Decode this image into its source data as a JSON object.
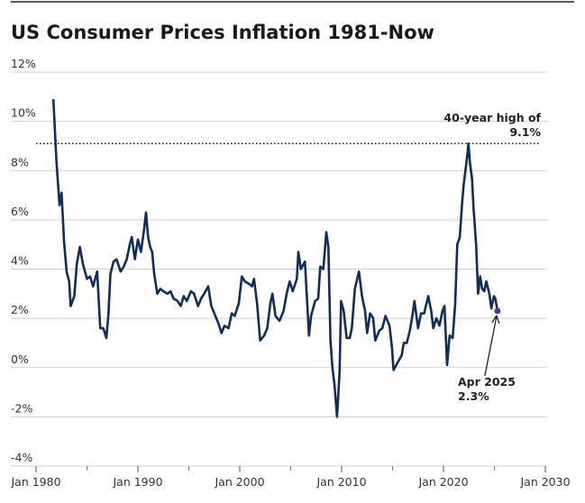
{
  "chart_data": {
    "type": "line",
    "title": "US Consumer Prices Inflation 1981-Now",
    "color": "#0e2f5c",
    "marker_color": "#4a3d8f",
    "grid": true,
    "x": [
      1981.7,
      1982.0,
      1982.3,
      1982.5,
      1982.75,
      1983.0,
      1983.25,
      1983.4,
      1983.75,
      1984.0,
      1984.3,
      1984.6,
      1985.0,
      1985.3,
      1985.6,
      1986.0,
      1986.3,
      1986.6,
      1986.9,
      1987.1,
      1987.3,
      1987.6,
      1987.9,
      1988.3,
      1988.6,
      1988.9,
      1989.2,
      1989.4,
      1989.7,
      1990.0,
      1990.3,
      1990.6,
      1990.8,
      1991.0,
      1991.2,
      1991.4,
      1991.6,
      1991.9,
      1992.2,
      1992.5,
      1992.9,
      1993.2,
      1993.5,
      1993.9,
      1994.2,
      1994.5,
      1994.8,
      1995.2,
      1995.5,
      1995.9,
      1996.2,
      1996.5,
      1996.9,
      1997.2,
      1997.5,
      1997.9,
      1998.2,
      1998.5,
      1998.9,
      1999.2,
      1999.5,
      1999.9,
      2000.2,
      2000.5,
      2000.9,
      2001.2,
      2001.4,
      2001.7,
      2002.0,
      2002.4,
      2002.7,
      2003.0,
      2003.2,
      2003.5,
      2003.9,
      2004.3,
      2004.6,
      2004.9,
      2005.2,
      2005.6,
      2005.75,
      2006.0,
      2006.4,
      2006.8,
      2007.0,
      2007.4,
      2007.7,
      2007.9,
      2008.2,
      2008.5,
      2008.7,
      2008.9,
      2009.1,
      2009.3,
      2009.55,
      2009.8,
      2009.95,
      2010.2,
      2010.5,
      2010.8,
      2011.0,
      2011.3,
      2011.7,
      2012.0,
      2012.3,
      2012.5,
      2012.8,
      2013.1,
      2013.3,
      2013.7,
      2014.0,
      2014.3,
      2014.7,
      2014.95,
      2015.1,
      2015.5,
      2015.9,
      2016.1,
      2016.4,
      2016.7,
      2016.95,
      2017.15,
      2017.5,
      2017.8,
      2018.1,
      2018.5,
      2018.8,
      2019.0,
      2019.3,
      2019.6,
      2019.9,
      2020.1,
      2020.35,
      2020.6,
      2020.9,
      2021.15,
      2021.35,
      2021.6,
      2021.85,
      2022.0,
      2022.25,
      2022.45,
      2022.6,
      2022.8,
      2022.95,
      2023.2,
      2023.4,
      2023.6,
      2023.8,
      2024.0,
      2024.2,
      2024.5,
      2024.7,
      2024.95,
      2025.1,
      2025.3
    ],
    "values": [
      10.9,
      8.4,
      6.6,
      7.1,
      5.1,
      3.9,
      3.5,
      2.5,
      2.9,
      4.2,
      4.9,
      4.2,
      3.6,
      3.7,
      3.3,
      3.9,
      1.6,
      1.6,
      1.2,
      2.1,
      3.8,
      4.3,
      4.4,
      3.9,
      4.1,
      4.4,
      5.0,
      5.3,
      4.4,
      5.2,
      4.7,
      5.6,
      6.3,
      5.3,
      4.9,
      4.7,
      3.8,
      3.0,
      3.2,
      3.1,
      3.0,
      3.1,
      2.8,
      2.7,
      2.5,
      2.9,
      2.7,
      3.1,
      3.0,
      2.5,
      2.8,
      3.0,
      3.3,
      2.5,
      2.2,
      1.8,
      1.4,
      1.7,
      1.6,
      2.2,
      2.1,
      2.6,
      3.7,
      3.5,
      3.4,
      3.3,
      3.6,
      2.6,
      1.1,
      1.3,
      1.6,
      2.6,
      3.0,
      2.1,
      1.9,
      2.3,
      3.0,
      3.5,
      3.1,
      3.6,
      4.7,
      4.0,
      4.3,
      1.3,
      2.1,
      2.7,
      2.8,
      4.1,
      4.0,
      5.5,
      4.9,
      1.1,
      0.0,
      -0.7,
      -2.0,
      -0.2,
      2.7,
      2.3,
      1.2,
      1.2,
      1.6,
      3.2,
      3.9,
      2.9,
      2.3,
      1.4,
      2.2,
      2.0,
      1.1,
      1.5,
      1.6,
      2.1,
      1.7,
      0.8,
      -0.1,
      0.2,
      0.5,
      1.0,
      1.0,
      1.5,
      2.1,
      2.7,
      1.6,
      2.2,
      2.2,
      2.9,
      2.3,
      1.6,
      2.0,
      1.7,
      2.3,
      2.5,
      0.1,
      1.3,
      1.2,
      2.6,
      5.0,
      5.3,
      6.8,
      7.5,
      8.3,
      9.1,
      8.3,
      7.7,
      6.5,
      5.0,
      3.0,
      3.7,
      3.2,
      3.1,
      3.5,
      3.0,
      2.4,
      2.9,
      2.8,
      2.3
    ],
    "xlim": [
      1980,
      2030
    ],
    "xticks": [
      {
        "value": 1980,
        "label": "Jan 1980"
      },
      {
        "value": 1990,
        "label": "Jan 1990"
      },
      {
        "value": 2000,
        "label": "Jan 2000"
      },
      {
        "value": 2010,
        "label": "Jan 2010"
      },
      {
        "value": 2020,
        "label": "Jan 2020"
      },
      {
        "value": 2030,
        "label": "Jan 2030"
      }
    ],
    "xminorticks": [
      1985,
      1995,
      2005,
      2015,
      2025
    ],
    "ylim": [
      -4,
      12
    ],
    "yticks": [
      {
        "value": 12,
        "label": "12%"
      },
      {
        "value": 10,
        "label": "10%"
      },
      {
        "value": 8,
        "label": "8%"
      },
      {
        "value": 6,
        "label": "6%"
      },
      {
        "value": 4,
        "label": "4%"
      },
      {
        "value": 2,
        "label": "2%"
      },
      {
        "value": 0,
        "label": "0%"
      },
      {
        "value": -2,
        "label": "-2%"
      },
      {
        "value": -4,
        "label": "-4%"
      }
    ],
    "annotations": [
      {
        "value": 9.1,
        "lines": [
          "40-year high of",
          "9.1%"
        ]
      },
      {
        "lines": [
          "Apr 2025",
          "2.3%"
        ]
      }
    ]
  }
}
